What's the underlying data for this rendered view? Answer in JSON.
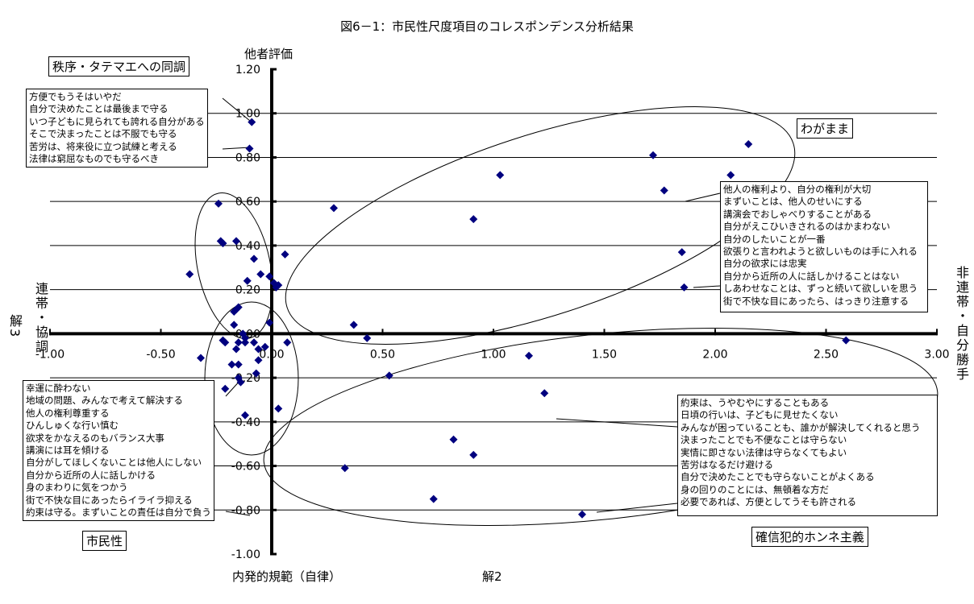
{
  "chart_data": {
    "type": "scatter",
    "title": "図6－1：市民性尺度項目のコレスポンデンス分析結果",
    "xlabel": "解2",
    "ylabel": "解3",
    "xlim": [
      -1.0,
      3.0
    ],
    "ylim": [
      -1.0,
      1.2
    ],
    "xticks": [
      "-1.00",
      "-0.50",
      "0.00",
      "0.50",
      "1.00",
      "1.50",
      "2.00",
      "2.50",
      "3.00"
    ],
    "yticks": [
      "1.20",
      "1.00",
      "0.80",
      "0.60",
      "0.40",
      "0.20",
      "0.00",
      "-0.20",
      "-0.40",
      "-0.60",
      "-0.80",
      "-1.00"
    ],
    "grid": "horizontal",
    "marker_color": "#00007f",
    "axis_labels": {
      "y_top": "他者評価",
      "x_bottom_left": "内発的規範（自律）",
      "x_left": "連帯・協調",
      "x_right": "非連帯・自分勝手"
    },
    "points": [
      [
        -0.09,
        0.96
      ],
      [
        -0.1,
        0.84
      ],
      [
        -0.24,
        0.59
      ],
      [
        -0.23,
        0.42
      ],
      [
        -0.22,
        0.41
      ],
      [
        -0.16,
        0.42
      ],
      [
        -0.08,
        0.34
      ],
      [
        -0.37,
        0.27
      ],
      [
        -0.05,
        0.27
      ],
      [
        -0.01,
        0.26
      ],
      [
        -0.11,
        0.24
      ],
      [
        0.01,
        0.23
      ],
      [
        0.03,
        0.22
      ],
      [
        0.02,
        0.21
      ],
      [
        -0.15,
        0.12
      ],
      [
        -0.17,
        0.1
      ],
      [
        -0.16,
        0.11
      ],
      [
        -0.17,
        0.04
      ],
      [
        -0.01,
        0.05
      ],
      [
        -0.13,
        0.0
      ],
      [
        -0.12,
        -0.02
      ],
      [
        -0.22,
        -0.03
      ],
      [
        -0.21,
        -0.04
      ],
      [
        -0.15,
        -0.04
      ],
      [
        -0.12,
        -0.04
      ],
      [
        -0.08,
        -0.04
      ],
      [
        -0.16,
        -0.07
      ],
      [
        -0.06,
        -0.07
      ],
      [
        -0.03,
        -0.06
      ],
      [
        0.07,
        -0.04
      ],
      [
        -0.32,
        -0.11
      ],
      [
        -0.18,
        -0.14
      ],
      [
        -0.15,
        -0.14
      ],
      [
        -0.06,
        -0.12
      ],
      [
        -0.07,
        -0.18
      ],
      [
        -0.15,
        -0.2
      ],
      [
        -0.14,
        -0.22
      ],
      [
        -0.21,
        -0.25
      ],
      [
        -0.12,
        -0.37
      ],
      [
        0.03,
        -0.34
      ],
      [
        0.28,
        0.57
      ],
      [
        0.06,
        0.36
      ],
      [
        0.37,
        0.04
      ],
      [
        0.43,
        -0.02
      ],
      [
        1.03,
        0.72
      ],
      [
        0.91,
        0.52
      ],
      [
        1.72,
        0.81
      ],
      [
        1.77,
        0.65
      ],
      [
        2.07,
        0.72
      ],
      [
        2.15,
        0.86
      ],
      [
        1.85,
        0.37
      ],
      [
        1.86,
        0.21
      ],
      [
        2.59,
        -0.03
      ],
      [
        1.16,
        -0.1
      ],
      [
        1.23,
        -0.27
      ],
      [
        0.53,
        -0.19
      ],
      [
        0.82,
        -0.48
      ],
      [
        0.91,
        -0.55
      ],
      [
        0.33,
        -0.61
      ],
      [
        0.73,
        -0.75
      ],
      [
        1.4,
        -0.82
      ]
    ],
    "annotations": {
      "groups": [
        {
          "label": "秩序・タテマエへの同調",
          "items": [
            "方便でもうそはいやだ",
            "自分で決めたことは最後まで守る",
            "いつ子どもに見られても誇れる自分がある",
            "そこで決まったことは不服でも守る",
            "苦労は、将来役に立つ試練と考える",
            "法律は窮屈なものでも守るべき"
          ]
        },
        {
          "label": "わがまま",
          "items": [
            "他人の権利より、自分の権利が大切",
            "まずいことは、他人のせいにする",
            "講演会でおしゃべりすることがある",
            "自分がえこひいきされるのはかまわない",
            "自分のしたいことが一番",
            "欲張りと言われようと欲しいものは手に入れる",
            "自分の欲求には忠実",
            "自分から近所の人に話しかけることはない",
            "しあわせなことは、ずっと続いて欲しいを思う",
            "街で不快な目にあったら、はっきり注意する"
          ]
        },
        {
          "label": "市民性",
          "items": [
            "幸運に酔わない",
            "地域の問題、みんなで考えて解決する",
            "他人の権利尊重する",
            "ひんしゅくな行い慎む",
            "欲求をかなえるのもバランス大事",
            "講演には耳を傾ける",
            "自分がしてほしくないことは他人にしない",
            "自分から近所の人に話しかける",
            "身のまわりに気をつかう",
            "街で不快な目にあったらイライラ抑える",
            "約束は守る。まずいことの責任は自分で負う"
          ]
        },
        {
          "label": "確信犯的ホンネ主義",
          "items": [
            "約束は、うやむやにすることもある",
            "日頃の行いは、子どもに見せたくない",
            "みんなが困っていることも、誰かが解決してくれると思う",
            "決まったことでも不便なことは守らない",
            "実情に即さない法律は守らなくてもよい",
            "苦労はなるだけ避ける",
            "自分で決めたことでも守らないことがよくある",
            "身の回りのことには、無頓着な方だ",
            "必要であれば、方便としてうそも許される"
          ]
        }
      ]
    }
  }
}
